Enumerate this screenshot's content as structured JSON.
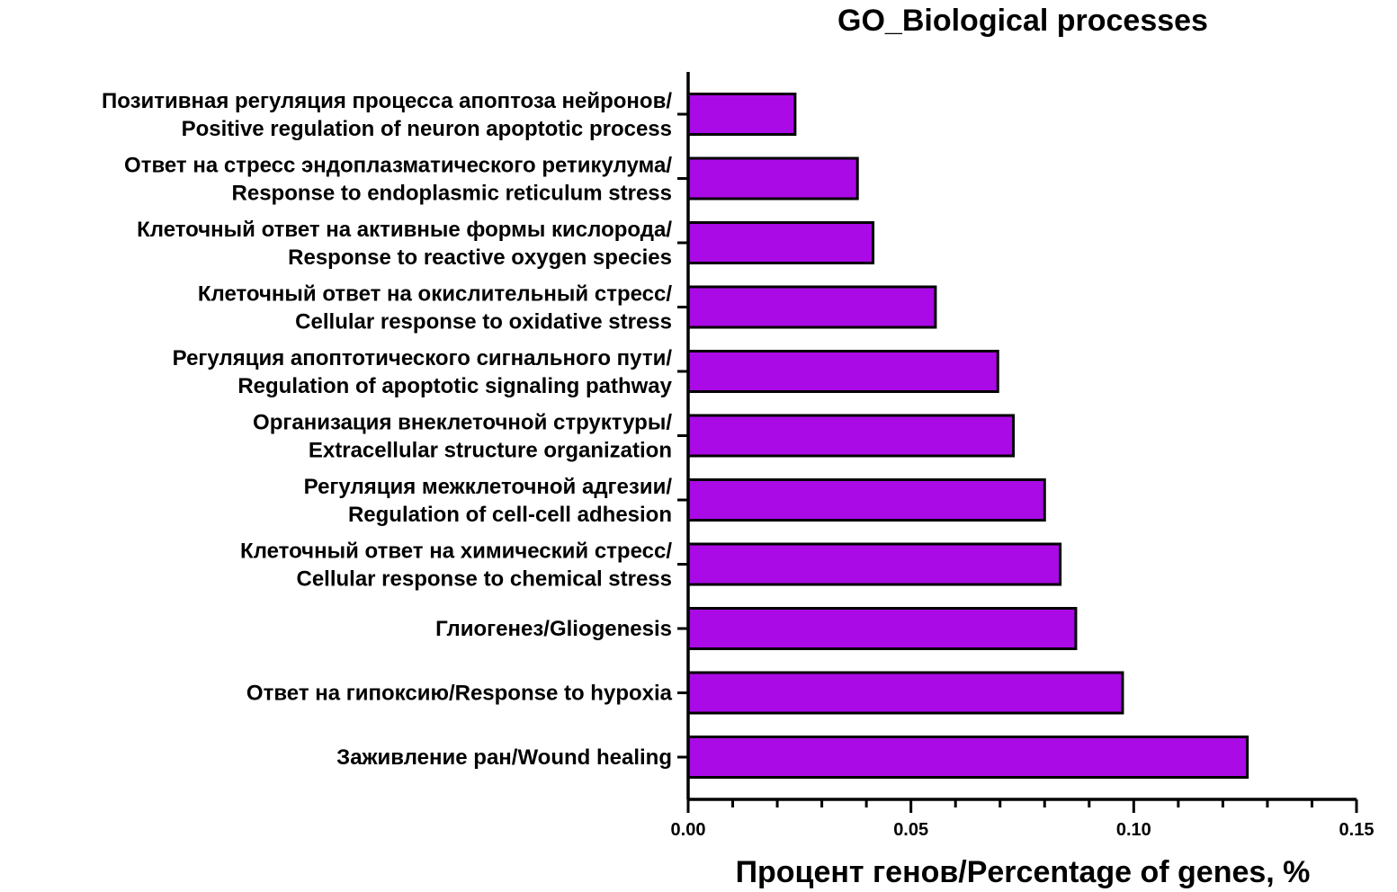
{
  "chart_data": {
    "type": "bar",
    "orientation": "horizontal",
    "title": "GO_Biological processes",
    "xlabel": "Процент генов/Percentage of genes, %",
    "ylabel": "",
    "xlim": [
      0,
      0.15
    ],
    "x_ticks": [
      "0.00",
      "0.05",
      "0.10",
      "0.15"
    ],
    "minor_ticks_between_major": 4,
    "bar_color": "#aa0ae6",
    "grid": false,
    "categories": [
      [
        "Позитивная регуляция процесса апоптоза нейронов/",
        "Positive regulation of neuron apoptotic process"
      ],
      [
        "Ответ на стресс эндоплазматического ретикулума/",
        "Response to endoplasmic reticulum stress"
      ],
      [
        "Клеточный ответ на активные формы кислорода/",
        "Response to reactive oxygen species"
      ],
      [
        "Клеточный ответ на окислительный стресс/",
        "Cellular response to oxidative stress"
      ],
      [
        "Регуляция апоптотического сигнального пути/",
        "Regulation of apoptotic signaling pathway"
      ],
      [
        "Организация внеклеточной структуры/",
        "Extracellular structure organization"
      ],
      [
        "Регуляция межклеточной адгезии/",
        "Regulation of cell-cell adhesion"
      ],
      [
        "Клеточный ответ на химический стресс/",
        "Cellular response to chemical stress"
      ],
      [
        "Глиогенез/Gliogenesis"
      ],
      [
        "Ответ на гипоксию/Response to hypoxia"
      ],
      [
        "Заживление ран/Wound healing"
      ]
    ],
    "values": [
      0.024,
      0.038,
      0.0415,
      0.0555,
      0.0695,
      0.073,
      0.08,
      0.0835,
      0.087,
      0.0975,
      0.1255
    ]
  }
}
